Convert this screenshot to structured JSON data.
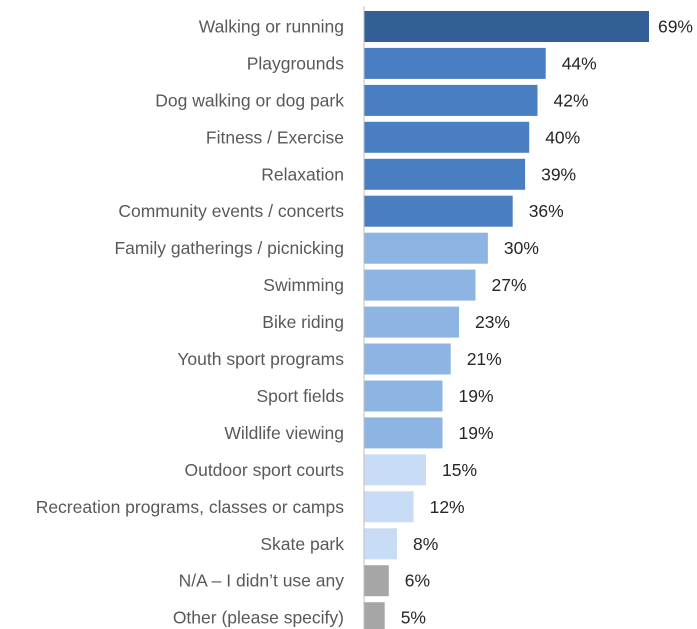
{
  "chart_data": {
    "type": "bar",
    "orientation": "horizontal",
    "title": "",
    "xlabel": "",
    "ylabel": "",
    "xlim": [
      0,
      69
    ],
    "grid": false,
    "legend": "none",
    "value_format": "percent",
    "categories": [
      "Walking or running",
      "Playgrounds",
      "Dog walking or dog park",
      "Fitness / Exercise",
      "Relaxation",
      "Community events / concerts",
      "Family gatherings / picnicking",
      "Swimming",
      "Bike riding",
      "Youth sport programs",
      "Sport fields",
      "Wildlife viewing",
      "Outdoor sport courts",
      "Recreation programs, classes or camps",
      "Skate park",
      "N/A – I didn’t use any",
      "Other (please specify)"
    ],
    "values": [
      69,
      44,
      42,
      40,
      39,
      36,
      30,
      27,
      23,
      21,
      19,
      19,
      15,
      12,
      8,
      6,
      5
    ],
    "value_labels": [
      "69%",
      "44%",
      "42%",
      "40%",
      "39%",
      "36%",
      "30%",
      "27%",
      "23%",
      "21%",
      "19%",
      "19%",
      "15%",
      "12%",
      "8%",
      "6%",
      "5%"
    ],
    "bar_colors": [
      "#325F96",
      "#4A7EC2",
      "#4A7EC2",
      "#4A7EC2",
      "#4A7EC2",
      "#4A7EC2",
      "#8EB4E3",
      "#8EB4E3",
      "#8EB4E3",
      "#8EB4E3",
      "#8EB4E3",
      "#8EB4E3",
      "#C9DCF6",
      "#C9DCF6",
      "#C9DCF6",
      "#A6A6A6",
      "#A6A6A6"
    ],
    "axis_color": "#BFBFBF"
  }
}
